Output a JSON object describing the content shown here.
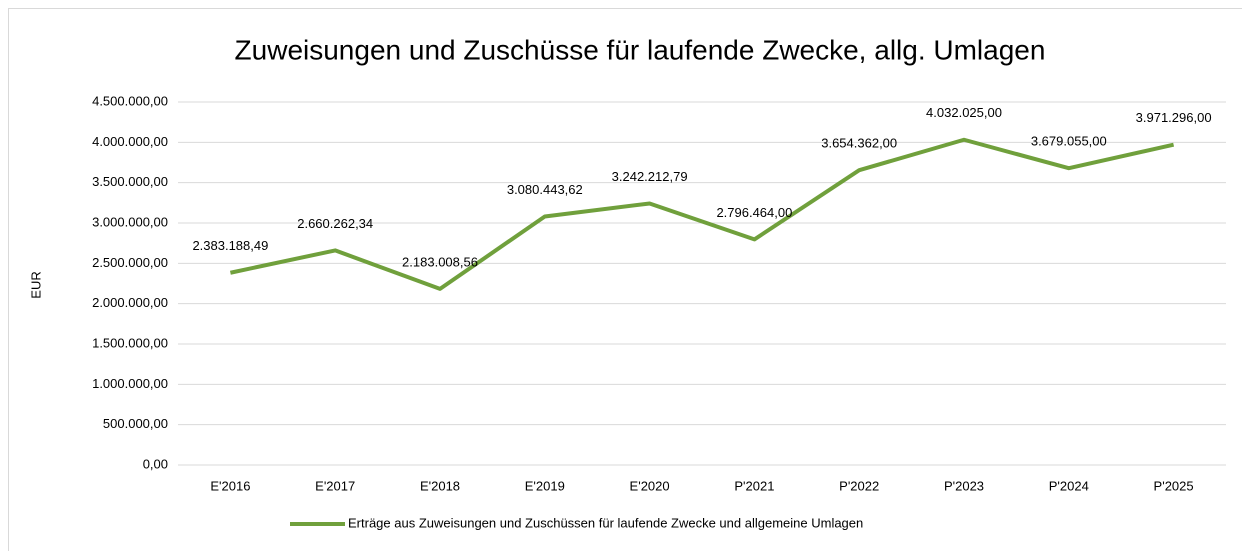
{
  "chart_data": {
    "type": "line",
    "title": "Zuweisungen und Zuschüsse für laufende Zwecke, allg. Umlagen",
    "y_label": "EUR",
    "categories": [
      "E'2016",
      "E'2017",
      "E'2018",
      "E'2019",
      "E'2020",
      "P'2021",
      "P'2022",
      "P'2023",
      "P'2024",
      "P'2025"
    ],
    "series": [
      {
        "name": "Erträge aus Zuweisungen und Zuschüssen für laufende Zwecke und allgemeine Umlagen",
        "color": "#70a03c",
        "values": [
          2383188.49,
          2660262.34,
          2183008.56,
          3080443.62,
          3242212.79,
          2796464.0,
          3654362.0,
          4032025.0,
          3679055.0,
          3971296.0
        ],
        "value_labels": [
          "2.383.188,49",
          "2.660.262,34",
          "2.183.008,56",
          "3.080.443,62",
          "3.242.212,79",
          "2.796.464,00",
          "3.654.362,00",
          "4.032.025,00",
          "3.679.055,00",
          "3.971.296,00"
        ]
      }
    ],
    "ylim": [
      0,
      4500000
    ],
    "yticks": [
      {
        "value": 0,
        "label": "0,00"
      },
      {
        "value": 500000,
        "label": "500.000,00"
      },
      {
        "value": 1000000,
        "label": "1.000.000,00"
      },
      {
        "value": 1500000,
        "label": "1.500.000,00"
      },
      {
        "value": 2000000,
        "label": "2.000.000,00"
      },
      {
        "value": 2500000,
        "label": "2.500.000,00"
      },
      {
        "value": 3000000,
        "label": "3.000.000,00"
      },
      {
        "value": 3500000,
        "label": "3.500.000,00"
      },
      {
        "value": 4000000,
        "label": "4.000.000,00"
      },
      {
        "value": 4500000,
        "label": "4.500.000,00"
      }
    ],
    "grid": true,
    "legend": "bottom"
  }
}
